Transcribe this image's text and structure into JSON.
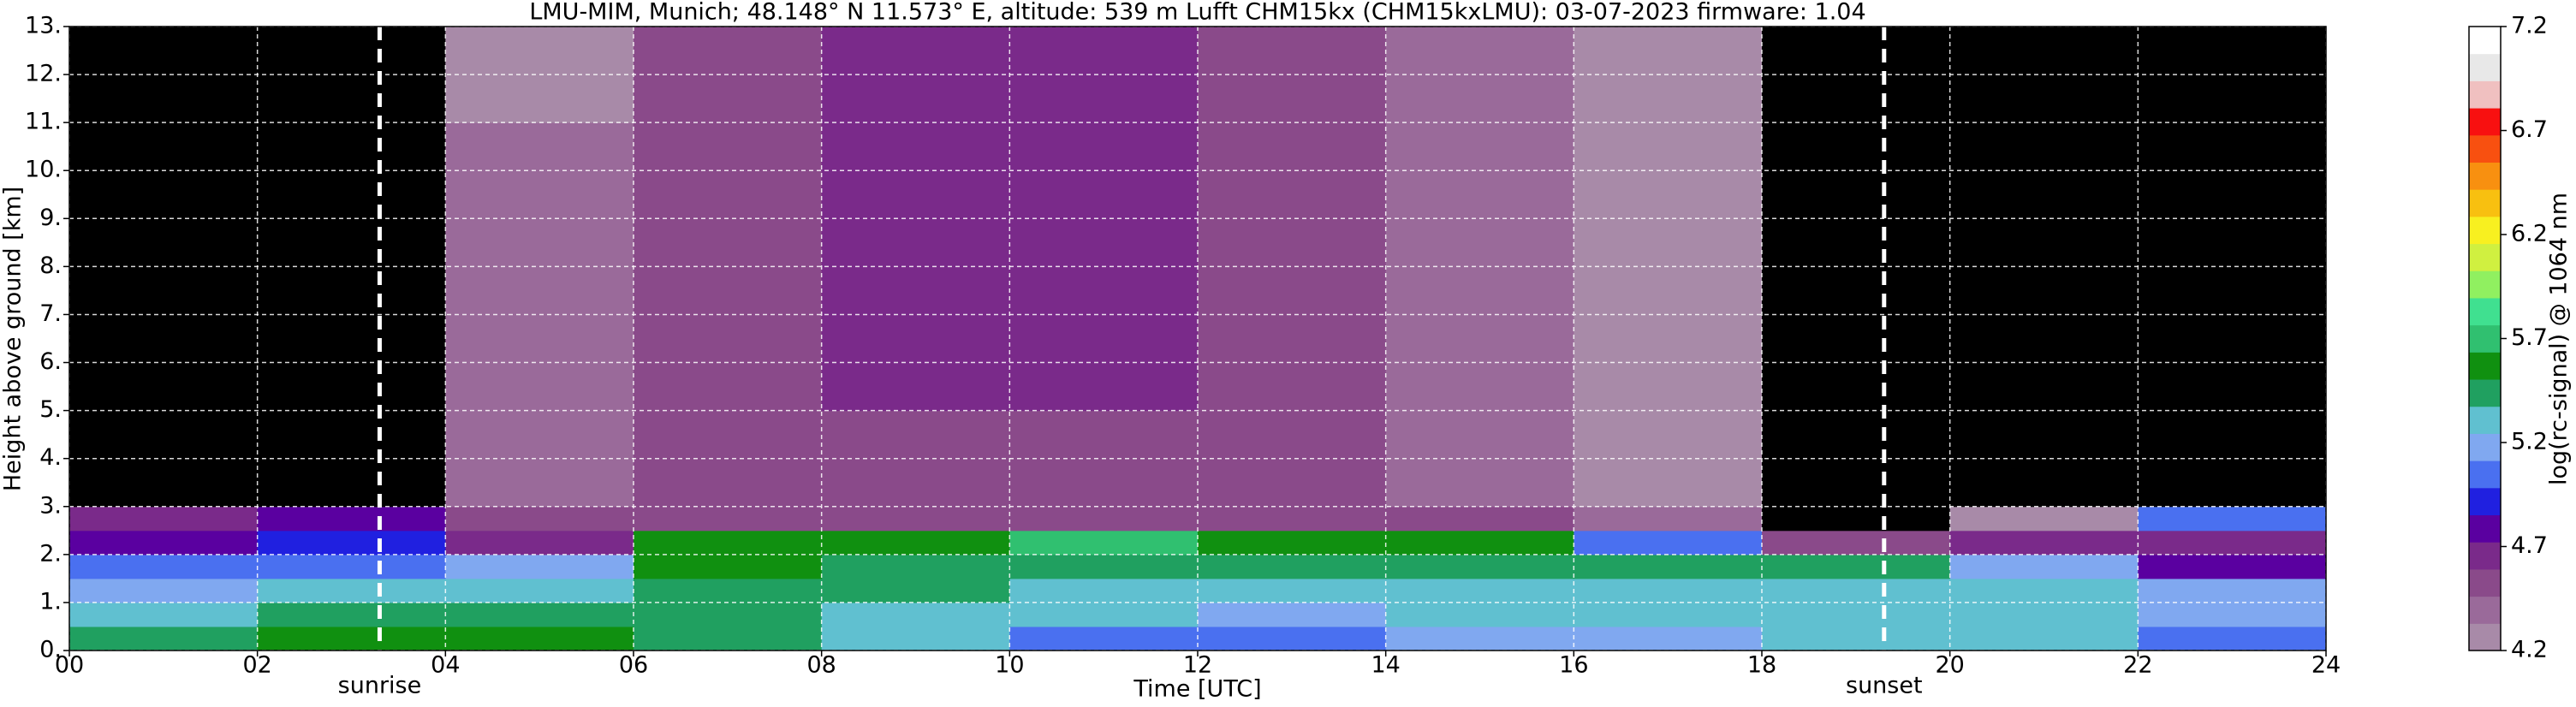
{
  "chart_data": {
    "type": "heatmap",
    "title": "LMU-MIM, Munich; 48.148° N 11.573° E, altitude: 539 m    Lufft CHM15kx (CHM15kxLMU): 03-07-2023    firmware: 1.04",
    "x_label": "Time [UTC]",
    "y_label": "Height above ground [km]",
    "colorbar_label": "log(rc-signal) @ 1064 nm",
    "xlim": [
      0,
      24
    ],
    "ylim": [
      0,
      13
    ],
    "xticks": [
      {
        "value": 0,
        "label": "00"
      },
      {
        "value": 2,
        "label": "02"
      },
      {
        "value": 4,
        "label": "04"
      },
      {
        "value": 6,
        "label": "06"
      },
      {
        "value": 8,
        "label": "08"
      },
      {
        "value": 10,
        "label": "10"
      },
      {
        "value": 12,
        "label": "12"
      },
      {
        "value": 14,
        "label": "14"
      },
      {
        "value": 16,
        "label": "16"
      },
      {
        "value": 18,
        "label": "18"
      },
      {
        "value": 20,
        "label": "20"
      },
      {
        "value": 22,
        "label": "22"
      },
      {
        "value": 24,
        "label": "24"
      }
    ],
    "yticks": [
      {
        "value": 0,
        "label": "0."
      },
      {
        "value": 1,
        "label": "1."
      },
      {
        "value": 2,
        "label": "2."
      },
      {
        "value": 3,
        "label": "3."
      },
      {
        "value": 4,
        "label": "4."
      },
      {
        "value": 5,
        "label": "5."
      },
      {
        "value": 6,
        "label": "6."
      },
      {
        "value": 7,
        "label": "7."
      },
      {
        "value": 8,
        "label": "8."
      },
      {
        "value": 9,
        "label": "9."
      },
      {
        "value": 10,
        "label": "10."
      },
      {
        "value": 11,
        "label": "11."
      },
      {
        "value": 12,
        "label": "12."
      },
      {
        "value": 13,
        "label": "13."
      }
    ],
    "grid": true,
    "clim": [
      4.2,
      7.2
    ],
    "cticks": [
      4.2,
      4.7,
      5.2,
      5.7,
      6.2,
      6.7,
      7.2
    ],
    "colormap": [
      "#a88aa8",
      "#9a6a9a",
      "#8a4a8a",
      "#7a2a8a",
      "#5a00a0",
      "#2020e0",
      "#4a70f0",
      "#80a8f0",
      "#60c0d0",
      "#20a060",
      "#109010",
      "#30c070",
      "#40e090",
      "#90f060",
      "#d0f040",
      "#f8f020",
      "#f8c010",
      "#f89010",
      "#f85010",
      "#f81010",
      "#f0c0c0",
      "#e8e8e8",
      "#ffffff"
    ],
    "under_color": "#000000",
    "xbins": [
      0,
      2,
      4,
      6,
      8,
      10,
      12,
      14,
      16,
      18,
      20,
      22,
      24
    ],
    "ybins": [
      0,
      0.5,
      1,
      1.5,
      2,
      2.5,
      3,
      5,
      7,
      9,
      11,
      13
    ],
    "z": [
      [
        5.4,
        5.6,
        5.6,
        5.5,
        5.3,
        5.1,
        5.0,
        5.2,
        5.2,
        5.3,
        5.3,
        5.1
      ],
      [
        5.3,
        5.4,
        5.5,
        5.5,
        5.3,
        5.3,
        5.2,
        5.3,
        5.3,
        5.3,
        5.3,
        5.2
      ],
      [
        5.2,
        5.3,
        5.3,
        5.5,
        5.4,
        5.3,
        5.3,
        5.3,
        5.3,
        5.3,
        5.3,
        5.2
      ],
      [
        5.0,
        5.1,
        5.2,
        5.6,
        5.5,
        5.5,
        5.4,
        5.4,
        5.5,
        5.4,
        5.2,
        4.8
      ],
      [
        4.8,
        4.9,
        4.6,
        5.6,
        5.6,
        5.7,
        5.6,
        5.6,
        5.0,
        4.5,
        4.6,
        4.7
      ],
      [
        4.7,
        4.8,
        4.5,
        4.5,
        4.5,
        4.5,
        4.5,
        4.5,
        4.4,
        4.1,
        4.2,
        5.0
      ],
      [
        4.0,
        4.0,
        4.4,
        4.5,
        4.5,
        4.5,
        4.5,
        4.4,
        4.3,
        4.0,
        4.0,
        4.0
      ],
      [
        3.9,
        3.9,
        4.4,
        4.5,
        4.6,
        4.6,
        4.5,
        4.4,
        4.3,
        3.9,
        3.9,
        3.9
      ],
      [
        3.9,
        3.9,
        4.4,
        4.5,
        4.6,
        4.6,
        4.5,
        4.4,
        4.3,
        3.9,
        3.9,
        3.9
      ],
      [
        3.9,
        3.9,
        4.4,
        4.5,
        4.6,
        4.6,
        4.5,
        4.4,
        4.3,
        3.9,
        3.9,
        3.9
      ],
      [
        3.9,
        3.9,
        4.3,
        4.5,
        4.6,
        4.6,
        4.5,
        4.4,
        4.3,
        3.9,
        3.9,
        3.9
      ]
    ],
    "annotations": [
      {
        "text": "sunrise",
        "x": 3.3
      },
      {
        "text": "sunset",
        "x": 19.3
      }
    ]
  }
}
